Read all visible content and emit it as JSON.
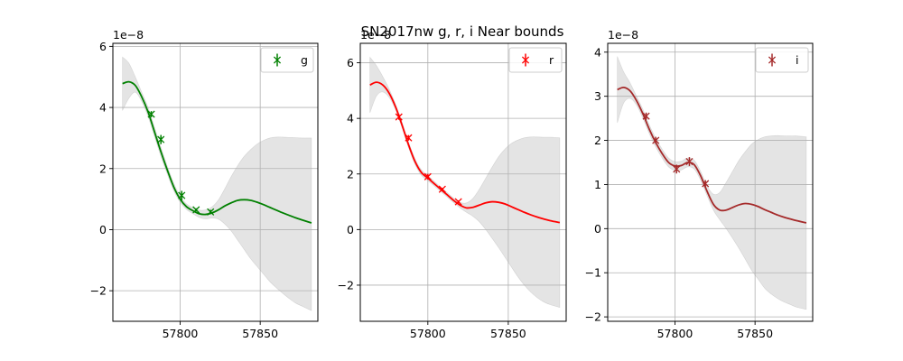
{
  "figure": {
    "title": "SN2017nw  g, r, i Near bounds"
  },
  "chart_data": [
    {
      "type": "line",
      "band": "g",
      "color": "#008000",
      "offset_label": "1e−8",
      "xlim": [
        57758,
        57886
      ],
      "ylim": [
        -3.0,
        6.1
      ],
      "xticks": [
        57800,
        57850
      ],
      "xtick_labels": [
        "57800",
        "57850"
      ],
      "yticks": [
        -2,
        0,
        2,
        4,
        6
      ],
      "ytick_labels": [
        "−2",
        "0",
        "2",
        "4",
        "6"
      ],
      "grid": true,
      "legend": {
        "label": "g",
        "placement": "top-right"
      },
      "gp_mean": {
        "x": [
          57764,
          57768,
          57772,
          57776,
          57780,
          57784,
          57788,
          57792,
          57796,
          57800,
          57804,
          57808,
          57812,
          57816,
          57820,
          57824,
          57828,
          57832,
          57836,
          57840,
          57844,
          57848,
          57852,
          57856,
          57860,
          57864,
          57868,
          57872,
          57876,
          57882
        ],
        "y": [
          4.78,
          4.84,
          4.72,
          4.35,
          3.85,
          3.2,
          2.55,
          1.95,
          1.4,
          1.0,
          0.75,
          0.62,
          0.52,
          0.5,
          0.55,
          0.65,
          0.78,
          0.88,
          0.96,
          0.98,
          0.96,
          0.9,
          0.82,
          0.73,
          0.64,
          0.55,
          0.47,
          0.39,
          0.32,
          0.22
        ]
      },
      "band_lower": [
        3.9,
        4.3,
        4.5,
        4.2,
        3.7,
        3.05,
        2.4,
        1.82,
        1.28,
        0.9,
        0.66,
        0.52,
        0.4,
        0.35,
        0.38,
        0.34,
        0.18,
        -0.05,
        -0.35,
        -0.65,
        -0.95,
        -1.2,
        -1.45,
        -1.7,
        -1.9,
        -2.08,
        -2.25,
        -2.4,
        -2.5,
        -2.65
      ],
      "band_upper": [
        5.65,
        5.45,
        5.0,
        4.5,
        4.0,
        3.35,
        2.7,
        2.08,
        1.52,
        1.1,
        0.84,
        0.72,
        0.64,
        0.65,
        0.75,
        0.98,
        1.35,
        1.75,
        2.1,
        2.4,
        2.62,
        2.8,
        2.92,
        3.0,
        3.03,
        3.03,
        3.02,
        3.01,
        3.0,
        3.0
      ],
      "observations": {
        "x": [
          57782,
          57788,
          57801,
          57810,
          57819
        ],
        "y": [
          3.78,
          2.95,
          1.12,
          0.65,
          0.58
        ],
        "yerr": [
          0.1,
          0.15,
          0.15,
          0.05,
          0.07
        ]
      }
    },
    {
      "type": "line",
      "band": "r",
      "color": "#ff0000",
      "offset_label": "1e−8",
      "xlim": [
        57758,
        57886
      ],
      "ylim": [
        -3.3,
        6.7
      ],
      "xticks": [
        57800,
        57850
      ],
      "xtick_labels": [
        "57800",
        "57850"
      ],
      "yticks": [
        -2,
        0,
        2,
        4,
        6
      ],
      "ytick_labels": [
        "−2",
        "0",
        "2",
        "4",
        "6"
      ],
      "grid": true,
      "legend": {
        "label": "r",
        "placement": "top-right"
      },
      "gp_mean": {
        "x": [
          57764,
          57768,
          57772,
          57776,
          57780,
          57784,
          57788,
          57792,
          57796,
          57800,
          57804,
          57808,
          57812,
          57816,
          57820,
          57824,
          57828,
          57832,
          57836,
          57840,
          57844,
          57848,
          57852,
          57856,
          57860,
          57864,
          57868,
          57872,
          57876,
          57882
        ],
        "y": [
          5.2,
          5.3,
          5.2,
          4.9,
          4.4,
          3.75,
          3.05,
          2.45,
          2.05,
          1.85,
          1.65,
          1.45,
          1.25,
          1.05,
          0.88,
          0.78,
          0.8,
          0.88,
          0.96,
          1.0,
          0.98,
          0.92,
          0.82,
          0.72,
          0.62,
          0.53,
          0.45,
          0.38,
          0.32,
          0.25
        ]
      },
      "band_lower": [
        4.2,
        4.8,
        4.95,
        4.75,
        4.3,
        3.65,
        2.95,
        2.35,
        1.95,
        1.76,
        1.57,
        1.37,
        1.17,
        0.97,
        0.78,
        0.62,
        0.48,
        0.28,
        0.0,
        -0.32,
        -0.65,
        -1.0,
        -1.35,
        -1.7,
        -2.0,
        -2.25,
        -2.45,
        -2.6,
        -2.7,
        -2.8
      ],
      "band_upper": [
        6.2,
        5.9,
        5.5,
        5.05,
        4.5,
        3.85,
        3.15,
        2.55,
        2.15,
        1.94,
        1.73,
        1.53,
        1.33,
        1.13,
        0.98,
        0.96,
        1.12,
        1.45,
        1.85,
        2.25,
        2.62,
        2.9,
        3.1,
        3.22,
        3.3,
        3.33,
        3.33,
        3.32,
        3.32,
        3.3
      ],
      "observations": {
        "x": [
          57782,
          57788,
          57800,
          57809,
          57819
        ],
        "y": [
          4.05,
          3.3,
          1.9,
          1.45,
          1.0
        ],
        "yerr": [
          0.1,
          0.1,
          0.1,
          0.05,
          0.05
        ]
      }
    },
    {
      "type": "line",
      "band": "i",
      "color": "#a52a2a",
      "offset_label": "1e−8",
      "xlim": [
        57758,
        57886
      ],
      "ylim": [
        -2.1,
        4.2
      ],
      "xticks": [
        57800,
        57850
      ],
      "xtick_labels": [
        "57800",
        "57850"
      ],
      "yticks": [
        -2,
        -1,
        0,
        1,
        2,
        3,
        4
      ],
      "ytick_labels": [
        "−2",
        "−1",
        "0",
        "1",
        "2",
        "3",
        "4"
      ],
      "grid": true,
      "legend": {
        "label": "i",
        "placement": "top-right"
      },
      "gp_mean": {
        "x": [
          57764,
          57768,
          57772,
          57776,
          57780,
          57784,
          57788,
          57792,
          57796,
          57800,
          57804,
          57808,
          57812,
          57816,
          57820,
          57824,
          57828,
          57832,
          57836,
          57840,
          57844,
          57848,
          57852,
          57856,
          57860,
          57864,
          57868,
          57872,
          57876,
          57882
        ],
        "y": [
          3.15,
          3.2,
          3.12,
          2.9,
          2.6,
          2.25,
          1.95,
          1.7,
          1.5,
          1.42,
          1.43,
          1.5,
          1.45,
          1.2,
          0.85,
          0.55,
          0.42,
          0.42,
          0.48,
          0.54,
          0.57,
          0.55,
          0.5,
          0.43,
          0.37,
          0.31,
          0.26,
          0.22,
          0.18,
          0.13
        ]
      },
      "band_lower": [
        2.4,
        2.85,
        2.95,
        2.8,
        2.5,
        2.15,
        1.85,
        1.6,
        1.4,
        1.32,
        1.33,
        1.4,
        1.35,
        1.1,
        0.75,
        0.42,
        0.2,
        0.0,
        -0.22,
        -0.45,
        -0.7,
        -0.95,
        -1.15,
        -1.35,
        -1.48,
        -1.58,
        -1.66,
        -1.72,
        -1.78,
        -1.83
      ],
      "band_upper": [
        3.9,
        3.55,
        3.3,
        3.0,
        2.7,
        2.35,
        2.05,
        1.8,
        1.6,
        1.52,
        1.53,
        1.6,
        1.55,
        1.3,
        0.97,
        0.78,
        0.82,
        1.05,
        1.3,
        1.55,
        1.75,
        1.92,
        2.02,
        2.08,
        2.1,
        2.11,
        2.1,
        2.1,
        2.1,
        2.08
      ],
      "observations": {
        "x": [
          57782,
          57788,
          57801,
          57809,
          57819
        ],
        "y": [
          2.55,
          2.0,
          1.35,
          1.52,
          1.02
        ],
        "yerr": [
          0.08,
          0.08,
          0.1,
          0.1,
          0.08
        ]
      }
    }
  ]
}
